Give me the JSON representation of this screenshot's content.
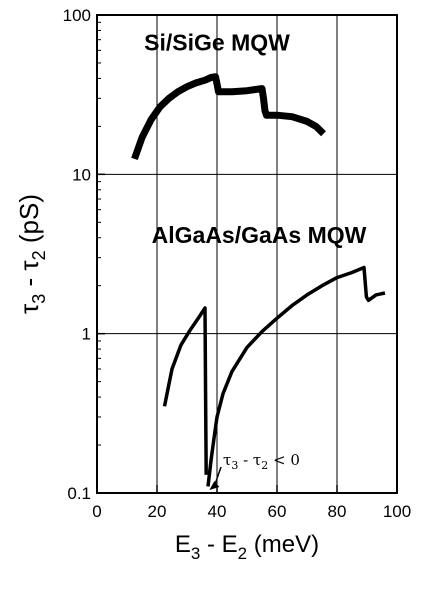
{
  "chart_data": {
    "type": "line",
    "xlabel_parts": [
      "E",
      "3",
      " - E",
      "2",
      "  (meV)"
    ],
    "ylabel_parts": [
      "τ",
      "3",
      " - τ",
      "2",
      "   (pS)"
    ],
    "xlim": [
      0,
      100
    ],
    "ylim": [
      0.1,
      100
    ],
    "yscale": "log",
    "x_ticks": [
      0,
      20,
      40,
      60,
      80,
      100
    ],
    "x_tick_labels": [
      "0",
      "20",
      "40",
      "60",
      "80",
      "100"
    ],
    "y_ticks": [
      0.1,
      1,
      10,
      100
    ],
    "y_tick_labels": [
      "0.1",
      "1",
      "10",
      "100"
    ],
    "grid": true,
    "series": [
      {
        "name": "Si/SiGe  MQW",
        "line_weight": "heavy",
        "x": [
          12.5,
          15,
          18,
          21,
          24,
          27,
          30,
          33,
          36,
          38,
          39.5,
          40,
          40.5,
          45,
          50,
          55,
          55.5,
          56,
          56.5,
          60,
          65,
          70,
          73,
          75.5
        ],
        "y": [
          12.5,
          17,
          22,
          26.5,
          30,
          33,
          35.5,
          37.5,
          39,
          40.5,
          41,
          37,
          33,
          33,
          33.5,
          34.5,
          30,
          25,
          23.5,
          23.5,
          23,
          21.5,
          20,
          18
        ]
      },
      {
        "name": "AlGaAs/GaAs  MQW",
        "line_weight": "medium",
        "segments": [
          {
            "x": [
              22.5,
              25,
              28,
              31,
              34,
              36,
              36.2,
              36.4
            ],
            "y": [
              0.35,
              0.6,
              0.85,
              1.05,
              1.27,
              1.45,
              0.4,
              0.13
            ]
          },
          {
            "x": [
              37,
              38,
              39,
              40,
              42,
              45,
              50,
              55,
              60,
              65,
              70,
              75,
              80,
              85,
              89,
              89.8,
              90.5,
              93,
              96
            ],
            "y": [
              0.11,
              0.16,
              0.22,
              0.3,
              0.42,
              0.58,
              0.82,
              1.03,
              1.25,
              1.5,
              1.75,
              2.0,
              2.25,
              2.42,
              2.6,
              1.7,
              1.62,
              1.75,
              1.8
            ]
          }
        ]
      }
    ],
    "annotations": [
      {
        "text": "Si/SiGe  MQW",
        "x": 40,
        "y": 60
      },
      {
        "text": "AlGaAs/GaAs  MQW",
        "x": 54,
        "y": 3.7
      },
      {
        "text_parts": [
          "τ",
          "3",
          " - τ",
          "2",
          " < 0"
        ],
        "x": 42,
        "y": 0.15,
        "arrow_to": [
          36.8,
          0.1
        ]
      }
    ]
  }
}
